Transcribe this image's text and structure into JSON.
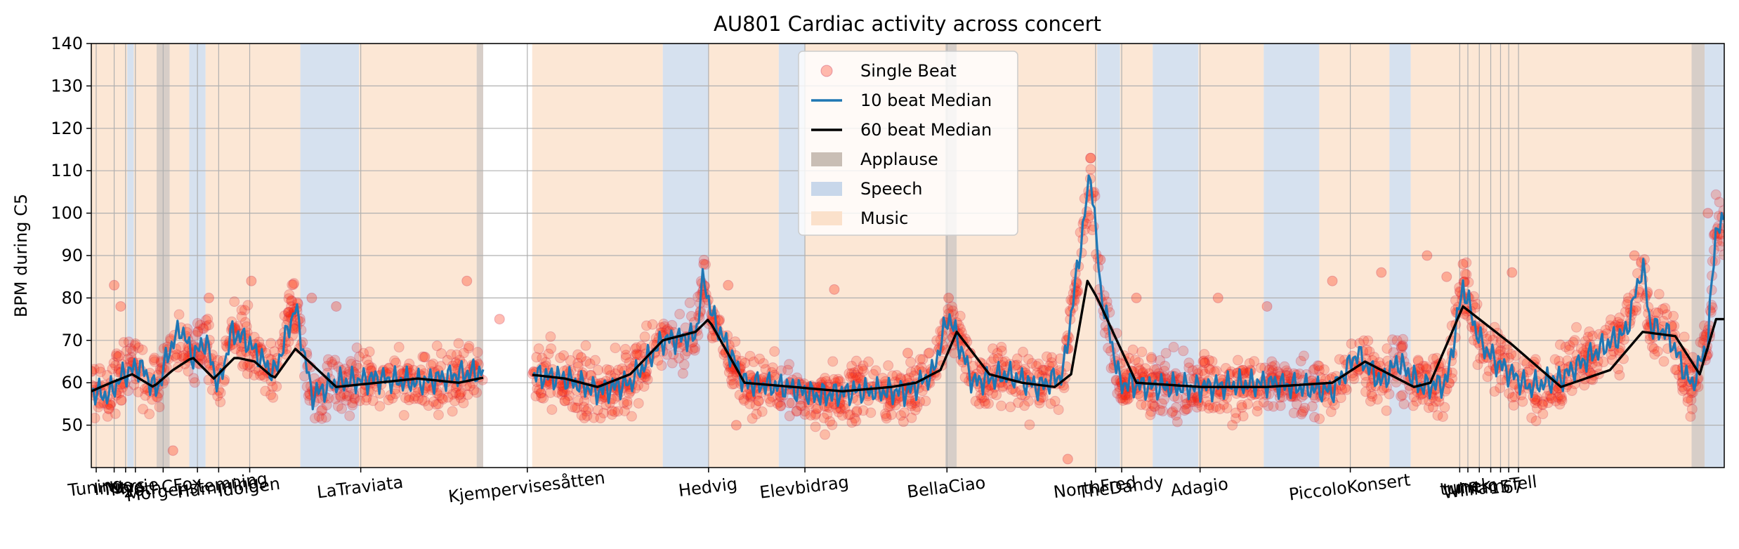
{
  "chart_data": {
    "type": "scatter",
    "title": "AU801 Cardiac activity across concert",
    "xlabel": "",
    "ylabel": "BPM during C5",
    "ylim": [
      40,
      140
    ],
    "xlim": [
      0,
      1000
    ],
    "yticks": [
      50,
      60,
      70,
      80,
      90,
      100,
      110,
      120,
      130,
      140
    ],
    "grid": true,
    "legend": {
      "placement": "top-center",
      "entries": [
        "Single Beat",
        "10 beat Median",
        "60 beat Median",
        "Applause",
        "Speech",
        "Music"
      ]
    },
    "colors": {
      "single_beat": "#ff2200",
      "median10": "#1f77b4",
      "median60": "#000000",
      "applause": "#c9beb5",
      "speech": "#c8d7ea",
      "music": "#fbe1cb"
    },
    "x_tick_labels": [
      {
        "x": 3,
        "label": "Tuning"
      },
      {
        "x": 14,
        "label": "Intro"
      },
      {
        "x": 21,
        "label": "Mars"
      },
      {
        "x": 27,
        "label": "Mysie"
      },
      {
        "x": 44,
        "label": "20thCFox"
      },
      {
        "x": 65,
        "label": "Morgenstemning"
      },
      {
        "x": 78,
        "label": "Humming"
      },
      {
        "x": 97,
        "label": "Idolgen"
      },
      {
        "x": 165,
        "label": "LaTraviata"
      },
      {
        "x": 267,
        "label": "Kjempervisesåtten"
      },
      {
        "x": 378,
        "label": "Hedvig"
      },
      {
        "x": 437,
        "label": "Elevbidrag"
      },
      {
        "x": 524,
        "label": "BellaCiao"
      },
      {
        "x": 615,
        "label": "NorthFred"
      },
      {
        "x": 631,
        "label": "TheDandy"
      },
      {
        "x": 679,
        "label": "Adagio"
      },
      {
        "x": 771,
        "label": "PiccoloKonsert"
      },
      {
        "x": 838,
        "label": "tune"
      },
      {
        "x": 843,
        "label": "tunek"
      },
      {
        "x": 850,
        "label": "intro"
      },
      {
        "x": 857,
        "label": "William Tell"
      },
      {
        "x": 863,
        "label": "15"
      },
      {
        "x": 868,
        "label": "6"
      },
      {
        "x": 874,
        "label": "7"
      }
    ],
    "regions": [
      {
        "start": 0,
        "end": 22,
        "type": "music"
      },
      {
        "start": 22,
        "end": 26,
        "type": "speech"
      },
      {
        "start": 26,
        "end": 40,
        "type": "music"
      },
      {
        "start": 40,
        "end": 48,
        "type": "applause"
      },
      {
        "start": 48,
        "end": 60,
        "type": "music"
      },
      {
        "start": 60,
        "end": 70,
        "type": "speech"
      },
      {
        "start": 70,
        "end": 128,
        "type": "music"
      },
      {
        "start": 128,
        "end": 164,
        "type": "speech"
      },
      {
        "start": 164,
        "end": 236,
        "type": "music"
      },
      {
        "start": 236,
        "end": 240,
        "type": "applause"
      },
      {
        "start": 270,
        "end": 350,
        "type": "music"
      },
      {
        "start": 350,
        "end": 378,
        "type": "speech"
      },
      {
        "start": 378,
        "end": 421,
        "type": "music"
      },
      {
        "start": 421,
        "end": 437,
        "type": "speech"
      },
      {
        "start": 437,
        "end": 523,
        "type": "music"
      },
      {
        "start": 523,
        "end": 530,
        "type": "applause"
      },
      {
        "start": 530,
        "end": 616,
        "type": "music"
      },
      {
        "start": 616,
        "end": 630,
        "type": "speech"
      },
      {
        "start": 630,
        "end": 650,
        "type": "music"
      },
      {
        "start": 650,
        "end": 678,
        "type": "speech"
      },
      {
        "start": 678,
        "end": 718,
        "type": "music"
      },
      {
        "start": 718,
        "end": 752,
        "type": "speech"
      },
      {
        "start": 752,
        "end": 795,
        "type": "music"
      },
      {
        "start": 795,
        "end": 808,
        "type": "speech"
      },
      {
        "start": 808,
        "end": 845,
        "type": "music"
      },
      {
        "start": 845,
        "end": 980,
        "type": "music"
      },
      {
        "start": 980,
        "end": 988,
        "type": "applause"
      },
      {
        "start": 988,
        "end": 1000,
        "type": "speech"
      }
    ],
    "series": [
      {
        "name": "60 beat Median",
        "x": [
          0,
          12,
          25,
          38,
          50,
          62,
          75,
          88,
          100,
          112,
          125,
          150,
          175,
          200,
          225,
          250,
          267,
          290,
          310,
          330,
          350,
          370,
          378,
          400,
          430,
          460,
          490,
          505,
          520,
          530,
          550,
          570,
          590,
          600,
          610,
          616,
          640,
          680,
          720,
          760,
          780,
          800,
          810,
          820,
          840,
          870,
          900,
          930,
          950,
          970,
          985,
          995
        ],
        "values": [
          58,
          60,
          62,
          59,
          63,
          66,
          61,
          66,
          65,
          61,
          68,
          59,
          60,
          61,
          60,
          62,
          62,
          61,
          59,
          62,
          70,
          72,
          75,
          60,
          59,
          58,
          59,
          60,
          63,
          72,
          62,
          60,
          59,
          62,
          84,
          80,
          60,
          59,
          59,
          60,
          65,
          61,
          59,
          60,
          78,
          69,
          59,
          63,
          72,
          71,
          62,
          75
        ]
      },
      {
        "name": "10 beat Median",
        "x": [
          0,
          10,
          20,
          30,
          40,
          48,
          55,
          62,
          70,
          78,
          86,
          95,
          105,
          112,
          125,
          135,
          150,
          175,
          200,
          225,
          250,
          267,
          290,
          310,
          330,
          350,
          370,
          375,
          380,
          400,
          425,
          445,
          470,
          500,
          515,
          525,
          540,
          560,
          580,
          595,
          605,
          612,
          618,
          630,
          650,
          680,
          720,
          760,
          775,
          790,
          800,
          815,
          830,
          840,
          850,
          860,
          880,
          900,
          920,
          940,
          950,
          955,
          965,
          980,
          990,
          995
        ],
        "values": [
          58,
          57,
          62,
          64,
          58,
          68,
          73,
          66,
          70,
          59,
          72,
          70,
          65,
          62,
          78,
          57,
          60,
          61,
          60,
          62,
          63,
          62,
          61,
          58,
          60,
          70,
          71,
          85,
          76,
          60,
          59,
          57,
          58,
          58,
          62,
          76,
          60,
          62,
          59,
          62,
          90,
          110,
          82,
          60,
          59,
          59,
          60,
          58,
          67,
          60,
          65,
          59,
          60,
          83,
          70,
          65,
          59,
          61,
          67,
          72,
          88,
          73,
          72,
          59,
          70,
          97
        ]
      },
      {
        "name": "Single Beat",
        "sample_points": [
          [
            2,
            57
          ],
          [
            14,
            83
          ],
          [
            18,
            78
          ],
          [
            50,
            44
          ],
          [
            72,
            80
          ],
          [
            98,
            84
          ],
          [
            135,
            80
          ],
          [
            150,
            78
          ],
          [
            230,
            84
          ],
          [
            250,
            75
          ],
          [
            300,
            66
          ],
          [
            375,
            88
          ],
          [
            390,
            83
          ],
          [
            395,
            50
          ],
          [
            455,
            82
          ],
          [
            500,
            67
          ],
          [
            525,
            80
          ],
          [
            612,
            113
          ],
          [
            598,
            42
          ],
          [
            618,
            89
          ],
          [
            640,
            80
          ],
          [
            690,
            80
          ],
          [
            720,
            78
          ],
          [
            760,
            84
          ],
          [
            790,
            86
          ],
          [
            818,
            90
          ],
          [
            830,
            85
          ],
          [
            840,
            88
          ],
          [
            870,
            86
          ],
          [
            945,
            90
          ],
          [
            990,
            100
          ],
          [
            998,
            95
          ]
        ]
      }
    ]
  }
}
